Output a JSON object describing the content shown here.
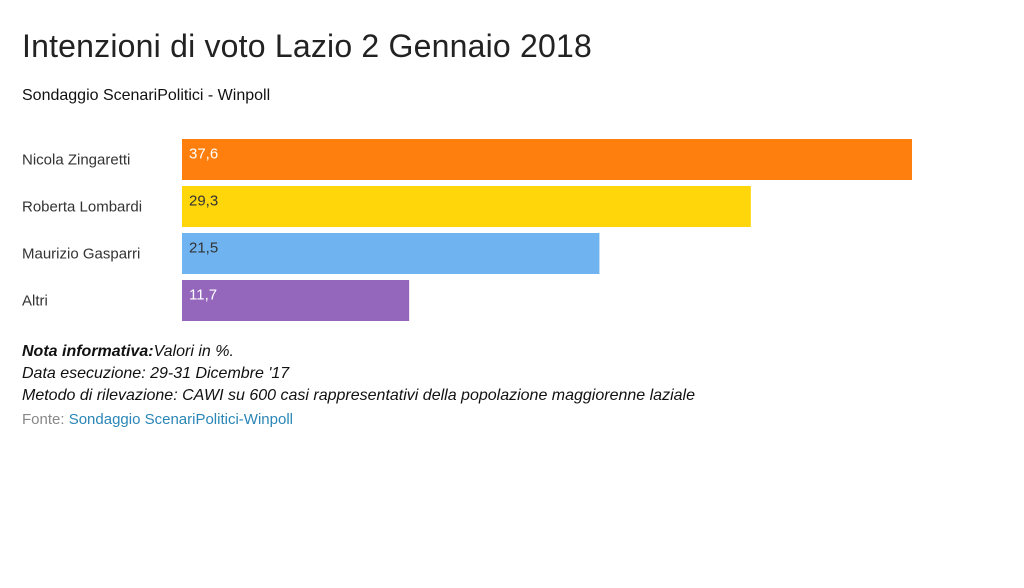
{
  "header": {
    "title": "Intenzioni di voto Lazio 2 Gennaio 2018",
    "subtitle": "Sondaggio ScenariPolitici - Winpoll"
  },
  "notes": {
    "note_label": "Nota informativa:",
    "note_text": "Valori in %.",
    "date_line": "Data esecuzione: 29-31 Dicembre '17",
    "method_line": "Metodo di rilevazione: CAWI su 600 casi rappresentativi della popolazione maggiorenne laziale"
  },
  "source": {
    "label": "Fonte:",
    "link_text": "Sondaggio ScenariPolitici-Winpoll"
  },
  "chart_data": {
    "type": "bar",
    "orientation": "horizontal",
    "categories": [
      "Nicola Zingaretti",
      "Roberta Lombardi",
      "Maurizio Gasparri",
      "Altri"
    ],
    "values": [
      37.6,
      29.3,
      21.5,
      11.7
    ],
    "value_labels": [
      "37,6",
      "29,3",
      "21,5",
      "11,7"
    ],
    "colors": [
      "#ff7f0e",
      "#ffd60a",
      "#6fb4f0",
      "#9467bd"
    ],
    "label_colors": [
      "#ffffff",
      "#333333",
      "#333333",
      "#ffffff"
    ],
    "xlim": [
      0,
      37.6
    ],
    "grid": false,
    "legend": "none"
  }
}
